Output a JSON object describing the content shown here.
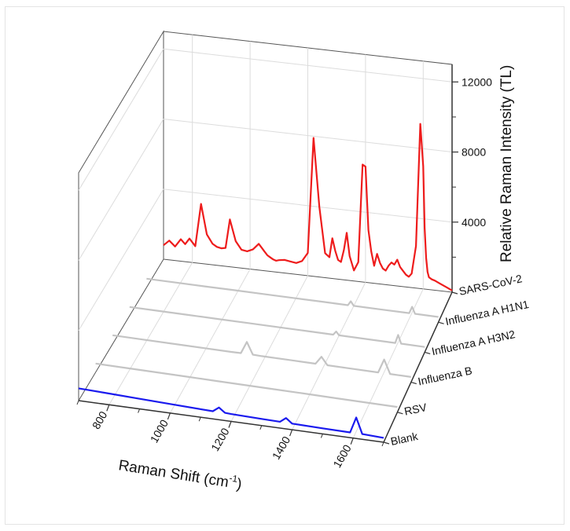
{
  "chart_data": {
    "type": "line",
    "projection": "3d-waterfall",
    "xlabel": "Raman Shift (cm",
    "xlabel_sup": "-1",
    "xlabel_suffix": ")",
    "zlabel": "Relative Raman Intensity (TL)",
    "xlim": [
      700,
      1700
    ],
    "zlim": [
      0,
      13000
    ],
    "x_ticks": [
      800,
      1000,
      1200,
      1400,
      1600
    ],
    "x_tick_labels": [
      "800",
      "1000",
      "1200",
      "1400",
      "1600"
    ],
    "z_ticks": [
      4000,
      8000,
      12000
    ],
    "z_tick_labels": [
      "4000",
      "8000",
      "12000"
    ],
    "grid": true,
    "series": [
      {
        "name": "SARS-CoV-2",
        "color": "#ee1c1c",
        "x": [
          700,
          720,
          740,
          760,
          775,
          790,
          810,
          830,
          850,
          870,
          885,
          900,
          915,
          930,
          950,
          970,
          990,
          1010,
          1030,
          1040,
          1050,
          1060,
          1070,
          1080,
          1090,
          1100,
          1120,
          1140,
          1160,
          1180,
          1200,
          1220,
          1240,
          1260,
          1275,
          1285,
          1295,
          1305,
          1315,
          1325,
          1335,
          1345,
          1360,
          1375,
          1390,
          1400,
          1410,
          1420,
          1430,
          1440,
          1450,
          1460,
          1470,
          1480,
          1490,
          1500,
          1510,
          1520,
          1530,
          1540,
          1550,
          1560,
          1575,
          1590,
          1600,
          1605,
          1610,
          1615,
          1620,
          1630,
          1640,
          1660,
          1680,
          1700
        ],
        "values": [
          800,
          1100,
          800,
          1250,
          1000,
          1350,
          950,
          3400,
          1700,
          1200,
          1050,
          1000,
          1050,
          2700,
          1500,
          1050,
          1000,
          1150,
          1500,
          1300,
          1100,
          900,
          800,
          700,
          650,
          700,
          750,
          700,
          650,
          800,
          1300,
          7900,
          4000,
          1400,
          1200,
          2300,
          1600,
          1100,
          1000,
          1700,
          2700,
          1400,
          600,
          1100,
          6700,
          6600,
          3000,
          1800,
          1000,
          1700,
          1200,
          900,
          800,
          1100,
          1300,
          1200,
          1500,
          1100,
          900,
          700,
          600,
          800,
          2400,
          9400,
          7000,
          3500,
          1800,
          1000,
          700,
          600,
          550,
          400,
          250,
          100
        ]
      },
      {
        "name": "Influenza A H1N1",
        "color": "#c4c4c4",
        "x": [
          700,
          800,
          900,
          1000,
          1100,
          1200,
          1300,
          1390,
          1400,
          1410,
          1500,
          1600,
          1610,
          1620,
          1700
        ],
        "values": [
          500,
          480,
          460,
          440,
          420,
          400,
          380,
          360,
          600,
          360,
          340,
          320,
          700,
          320,
          300
        ]
      },
      {
        "name": "Influenza A H3N2",
        "color": "#c4c4c4",
        "x": [
          700,
          800,
          900,
          1000,
          1100,
          1200,
          1300,
          1390,
          1400,
          1410,
          1500,
          1600,
          1610,
          1620,
          1700
        ],
        "values": [
          500,
          480,
          460,
          440,
          420,
          400,
          380,
          360,
          560,
          360,
          340,
          320,
          800,
          320,
          300
        ]
      },
      {
        "name": "Influenza B",
        "color": "#c4c4c4",
        "x": [
          700,
          800,
          900,
          1000,
          1100,
          1130,
          1150,
          1170,
          1200,
          1300,
          1380,
          1400,
          1420,
          1500,
          1590,
          1610,
          1630,
          1700
        ],
        "values": [
          500,
          480,
          460,
          440,
          420,
          420,
          1100,
          420,
          400,
          380,
          360,
          800,
          360,
          340,
          320,
          1100,
          320,
          300
        ]
      },
      {
        "name": "RSV",
        "color": "#c4c4c4",
        "x": [
          700,
          800,
          900,
          1000,
          1100,
          1200,
          1300,
          1400,
          1500,
          1600,
          1700
        ],
        "values": [
          500,
          480,
          460,
          440,
          420,
          400,
          380,
          360,
          340,
          320,
          300
        ]
      },
      {
        "name": "Blank",
        "color": "#1a1aee",
        "x": [
          700,
          800,
          900,
          1000,
          1100,
          1140,
          1160,
          1180,
          1200,
          1300,
          1360,
          1380,
          1400,
          1500,
          1590,
          1610,
          1630,
          1700
        ],
        "values": [
          700,
          640,
          580,
          520,
          460,
          440,
          700,
          440,
          420,
          380,
          360,
          620,
          350,
          320,
          300,
          1200,
          300,
          250
        ]
      }
    ]
  }
}
